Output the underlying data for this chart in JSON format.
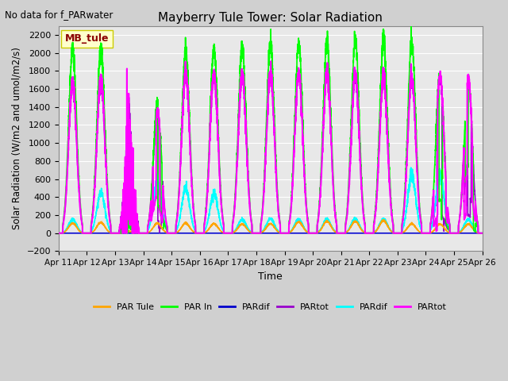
{
  "title": "Mayberry Tule Tower: Solar Radiation",
  "subtitle": "No data for f_PARwater",
  "xlabel": "Time",
  "ylabel": "Solar Radiation (W/m2 and umol/m2/s)",
  "ylim": [
    -200,
    2300
  ],
  "yticks": [
    -200,
    0,
    200,
    400,
    600,
    800,
    1000,
    1200,
    1400,
    1600,
    1800,
    2000,
    2200
  ],
  "num_days": 15,
  "start_day": 11,
  "fig_facecolor": "#d0d0d0",
  "ax_facecolor": "#e8e8e8",
  "legend_box_facecolor": "#ffffcc",
  "legend_box_edgecolor": "#cccc00",
  "legend_label_color": "#8b0000",
  "series": [
    {
      "name": "PAR Tule",
      "color": "#ffa500",
      "lw": 1.2,
      "zorder": 4
    },
    {
      "name": "PAR In",
      "color": "#00ff00",
      "lw": 1.2,
      "zorder": 5
    },
    {
      "name": "PARdif",
      "color": "#0000cc",
      "lw": 1.2,
      "zorder": 2
    },
    {
      "name": "PARtot",
      "color": "#9900cc",
      "lw": 1.2,
      "zorder": 3
    },
    {
      "name": "PARdif",
      "color": "#00ffff",
      "lw": 1.2,
      "zorder": 4
    },
    {
      "name": "PARtot",
      "color": "#ff00ff",
      "lw": 1.5,
      "zorder": 6
    }
  ],
  "par_in_peaks": [
    2050,
    2060,
    300,
    1450,
    2030,
    2050,
    2060,
    2100,
    2090,
    2100,
    2130,
    2130,
    2120,
    1800,
    1720
  ],
  "par_tule_peaks": [
    110,
    120,
    20,
    110,
    110,
    105,
    100,
    105,
    125,
    130,
    130,
    140,
    105,
    100,
    100
  ],
  "par_dif_blue_peaks": [
    0,
    0,
    0,
    0,
    0,
    0,
    0,
    0,
    0,
    0,
    0,
    0,
    0,
    0,
    0
  ],
  "par_tot_pur_peaks": [
    1660,
    1700,
    1350,
    1340,
    1760,
    1760,
    1750,
    1760,
    1760,
    1760,
    1730,
    1720,
    1720,
    1720,
    1700
  ],
  "par_dif_cyn_peaks": [
    150,
    460,
    200,
    580,
    500,
    440,
    150,
    160,
    155,
    155,
    160,
    155,
    650,
    640,
    150
  ],
  "par_tot_mag_peaks": [
    1680,
    1720,
    1400,
    1350,
    1780,
    1775,
    1760,
    1770,
    1770,
    1770,
    1750,
    1730,
    1730,
    1750,
    1720
  ],
  "cloudy_days": [
    2
  ],
  "partial_cloud_days": [
    3,
    13,
    14
  ]
}
